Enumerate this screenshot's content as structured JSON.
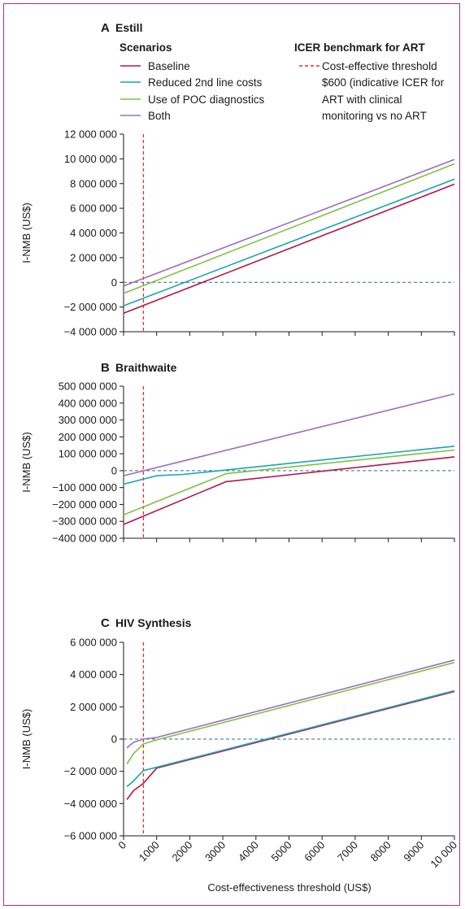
{
  "legend": {
    "scenarios_title": "Scenarios",
    "items": [
      {
        "label": "Baseline",
        "color": "#b5154b"
      },
      {
        "label": "Reduced 2nd line costs",
        "color": "#1ba3b8"
      },
      {
        "label": "Use of POC diagnostics",
        "color": "#7dc242"
      },
      {
        "label": "Both",
        "color": "#9e6bbf"
      }
    ],
    "icer_title": "ICER benchmark for ART",
    "icer_lines": [
      "Cost-effective threshold",
      "$600 (indicative ICER for",
      "ART with clinical",
      "monitoring vs no ART"
    ],
    "icer_color": "#e0302a"
  },
  "x_axis": {
    "label": "Cost-effectiveness threshold (US$)",
    "ticks": [
      "0",
      "1000",
      "2000",
      "3000",
      "4000",
      "5000",
      "6000",
      "7000",
      "8000",
      "9000",
      "10 000"
    ]
  },
  "zero_line_color": "#2e6e8c",
  "chart_data": [
    {
      "type": "line",
      "letter": "A",
      "title": "Estill",
      "ylabel": "I-NMB (US$)",
      "xlim": [
        0,
        10000
      ],
      "ylim": [
        -4000000,
        12000000
      ],
      "yticks": [
        {
          "v": -4000000,
          "label": "−4 000 000"
        },
        {
          "v": -2000000,
          "label": "−2 000 000"
        },
        {
          "v": 0,
          "label": "0"
        },
        {
          "v": 2000000,
          "label": "2 000 000"
        },
        {
          "v": 4000000,
          "label": "4 000 000"
        },
        {
          "v": 6000000,
          "label": "6 000 000"
        },
        {
          "v": 8000000,
          "label": "8 000 000"
        },
        {
          "v": 10000000,
          "label": "10 000 000"
        },
        {
          "v": 12000000,
          "label": "12 000 000"
        }
      ],
      "threshold_x": 600,
      "series": [
        {
          "name": "Baseline",
          "color": "#b5154b",
          "points": [
            [
              0,
              -2500000
            ],
            [
              10000,
              7950000
            ]
          ]
        },
        {
          "name": "Reduced 2nd line costs",
          "color": "#1ba3b8",
          "points": [
            [
              0,
              -1900000
            ],
            [
              10000,
              8350000
            ]
          ]
        },
        {
          "name": "Use of POC diagnostics",
          "color": "#7dc242",
          "points": [
            [
              0,
              -900000
            ],
            [
              10000,
              9600000
            ]
          ]
        },
        {
          "name": "Both",
          "color": "#9e6bbf",
          "points": [
            [
              0,
              -300000
            ],
            [
              10000,
              9950000
            ]
          ]
        }
      ]
    },
    {
      "type": "line",
      "letter": "B",
      "title": "Braithwaite",
      "ylabel": "I-NMB (US$)",
      "xlim": [
        0,
        10000
      ],
      "ylim": [
        -400000000,
        500000000
      ],
      "yticks": [
        {
          "v": -400000000,
          "label": "−400 000 000"
        },
        {
          "v": -300000000,
          "label": "−300 000 000"
        },
        {
          "v": -200000000,
          "label": "−200 000 000"
        },
        {
          "v": -100000000,
          "label": "−100 000 000"
        },
        {
          "v": 0,
          "label": "0"
        },
        {
          "v": 100000000,
          "label": "100 000 000"
        },
        {
          "v": 200000000,
          "label": "200 000 000"
        },
        {
          "v": 300000000,
          "label": "300 000 000"
        },
        {
          "v": 400000000,
          "label": "400 000 000"
        },
        {
          "v": 500000000,
          "label": "500 000 000"
        }
      ],
      "threshold_x": 600,
      "series": [
        {
          "name": "Baseline",
          "color": "#b5154b",
          "points": [
            [
              0,
              -318000000
            ],
            [
              3100,
              -65000000
            ],
            [
              10000,
              82000000
            ]
          ]
        },
        {
          "name": "Reduced 2nd line costs",
          "color": "#1ba3b8",
          "points": [
            [
              0,
              -80000000
            ],
            [
              1000,
              -30000000
            ],
            [
              1800,
              -22000000
            ],
            [
              10000,
              145000000
            ]
          ]
        },
        {
          "name": "Use of POC diagnostics",
          "color": "#7dc242",
          "points": [
            [
              0,
              -262000000
            ],
            [
              3100,
              -18000000
            ],
            [
              10000,
              122000000
            ]
          ]
        },
        {
          "name": "Both",
          "color": "#9e6bbf",
          "points": [
            [
              0,
              -30000000
            ],
            [
              10000,
              455000000
            ]
          ]
        }
      ]
    },
    {
      "type": "line",
      "letter": "C",
      "title": "HIV Synthesis",
      "ylabel": "I-NMB (US$)",
      "xlim": [
        0,
        10000
      ],
      "ylim": [
        -6000000,
        6000000
      ],
      "yticks": [
        {
          "v": -6000000,
          "label": "−6 000 000"
        },
        {
          "v": -4000000,
          "label": "−4 000 000"
        },
        {
          "v": -2000000,
          "label": "−2 000 000"
        },
        {
          "v": 0,
          "label": "0"
        },
        {
          "v": 2000000,
          "label": "2 000 000"
        },
        {
          "v": 4000000,
          "label": "4 000 000"
        },
        {
          "v": 6000000,
          "label": "6 000 000"
        }
      ],
      "threshold_x": 600,
      "series": [
        {
          "name": "Baseline",
          "color": "#b5154b",
          "points": [
            [
              100,
              -3750000
            ],
            [
              300,
              -3200000
            ],
            [
              600,
              -2750000
            ],
            [
              1000,
              -1800000
            ],
            [
              10000,
              2950000
            ]
          ]
        },
        {
          "name": "Reduced 2nd line costs",
          "color": "#1ba3b8",
          "points": [
            [
              100,
              -2950000
            ],
            [
              300,
              -2600000
            ],
            [
              600,
              -1950000
            ],
            [
              1000,
              -1750000
            ],
            [
              10000,
              3000000
            ]
          ]
        },
        {
          "name": "Use of POC diagnostics",
          "color": "#7dc242",
          "points": [
            [
              100,
              -1550000
            ],
            [
              300,
              -900000
            ],
            [
              600,
              -300000
            ],
            [
              1000,
              -50000
            ],
            [
              10000,
              4750000
            ]
          ]
        },
        {
          "name": "Both",
          "color": "#9e6bbf",
          "points": [
            [
              100,
              -550000
            ],
            [
              300,
              -200000
            ],
            [
              600,
              0
            ],
            [
              1000,
              100000
            ],
            [
              10000,
              4900000
            ]
          ]
        }
      ]
    }
  ]
}
